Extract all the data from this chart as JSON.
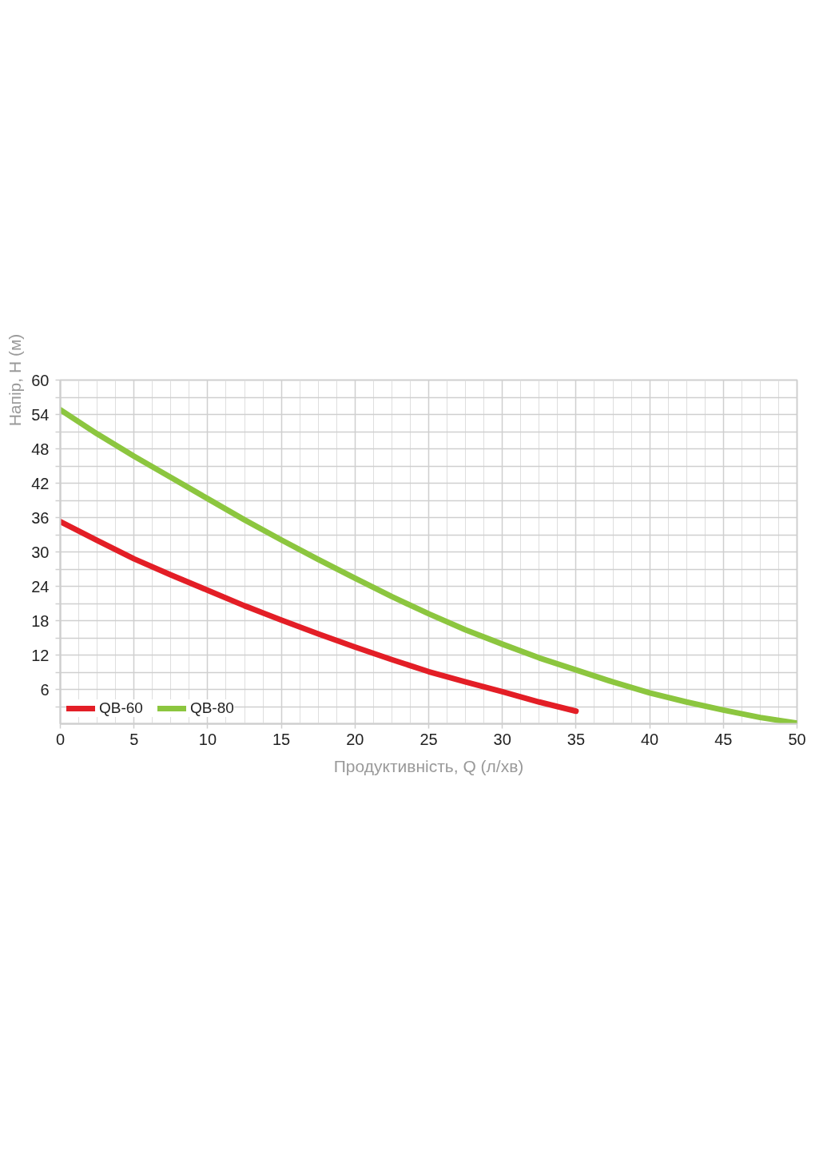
{
  "chart_data": {
    "type": "line",
    "xlabel": "Продуктивність, Q (л/хв)",
    "ylabel": "Напір, Н (м)",
    "xlim": [
      0,
      50
    ],
    "ylim": [
      0,
      60
    ],
    "xticks": [
      0,
      5,
      10,
      15,
      20,
      25,
      30,
      35,
      40,
      45,
      50
    ],
    "yticks": [
      {
        "value": 3,
        "label": null
      },
      6,
      {
        "value": 9,
        "label": null
      },
      12,
      {
        "value": 15,
        "label": null
      },
      18,
      {
        "value": 21,
        "label": null
      },
      24,
      {
        "value": 27,
        "label": null
      },
      30,
      {
        "value": 33,
        "label": null
      },
      36,
      {
        "value": 39,
        "label": null
      },
      42,
      {
        "value": 45,
        "label": null
      },
      48,
      {
        "value": 51,
        "label": null
      },
      54,
      {
        "value": 57,
        "label": null
      },
      60
    ],
    "series": [
      {
        "name": "QB-60",
        "color": "#e31e26",
        "x": [
          0,
          2.5,
          5,
          7.5,
          10,
          12.5,
          15,
          17.5,
          20,
          22.5,
          25,
          27.5,
          30,
          32.5,
          35
        ],
        "values": [
          35.3,
          32.0,
          28.8,
          26.0,
          23.3,
          20.6,
          18.1,
          15.7,
          13.4,
          11.2,
          9.1,
          7.3,
          5.6,
          3.8,
          2.2
        ]
      },
      {
        "name": "QB-80",
        "color": "#8cc63f",
        "x": [
          0,
          2.5,
          5,
          7.5,
          10,
          12.5,
          15,
          17.5,
          20,
          22.5,
          25,
          27.5,
          30,
          32.5,
          35,
          37.5,
          40,
          42.5,
          45,
          47.5,
          50
        ],
        "values": [
          54.8,
          50.6,
          46.7,
          43.0,
          39.3,
          35.6,
          32.1,
          28.7,
          25.4,
          22.2,
          19.2,
          16.4,
          13.9,
          11.5,
          9.4,
          7.3,
          5.4,
          3.8,
          2.4,
          1.1,
          0.1
        ]
      }
    ],
    "grid": true,
    "legend": "bottom left"
  }
}
